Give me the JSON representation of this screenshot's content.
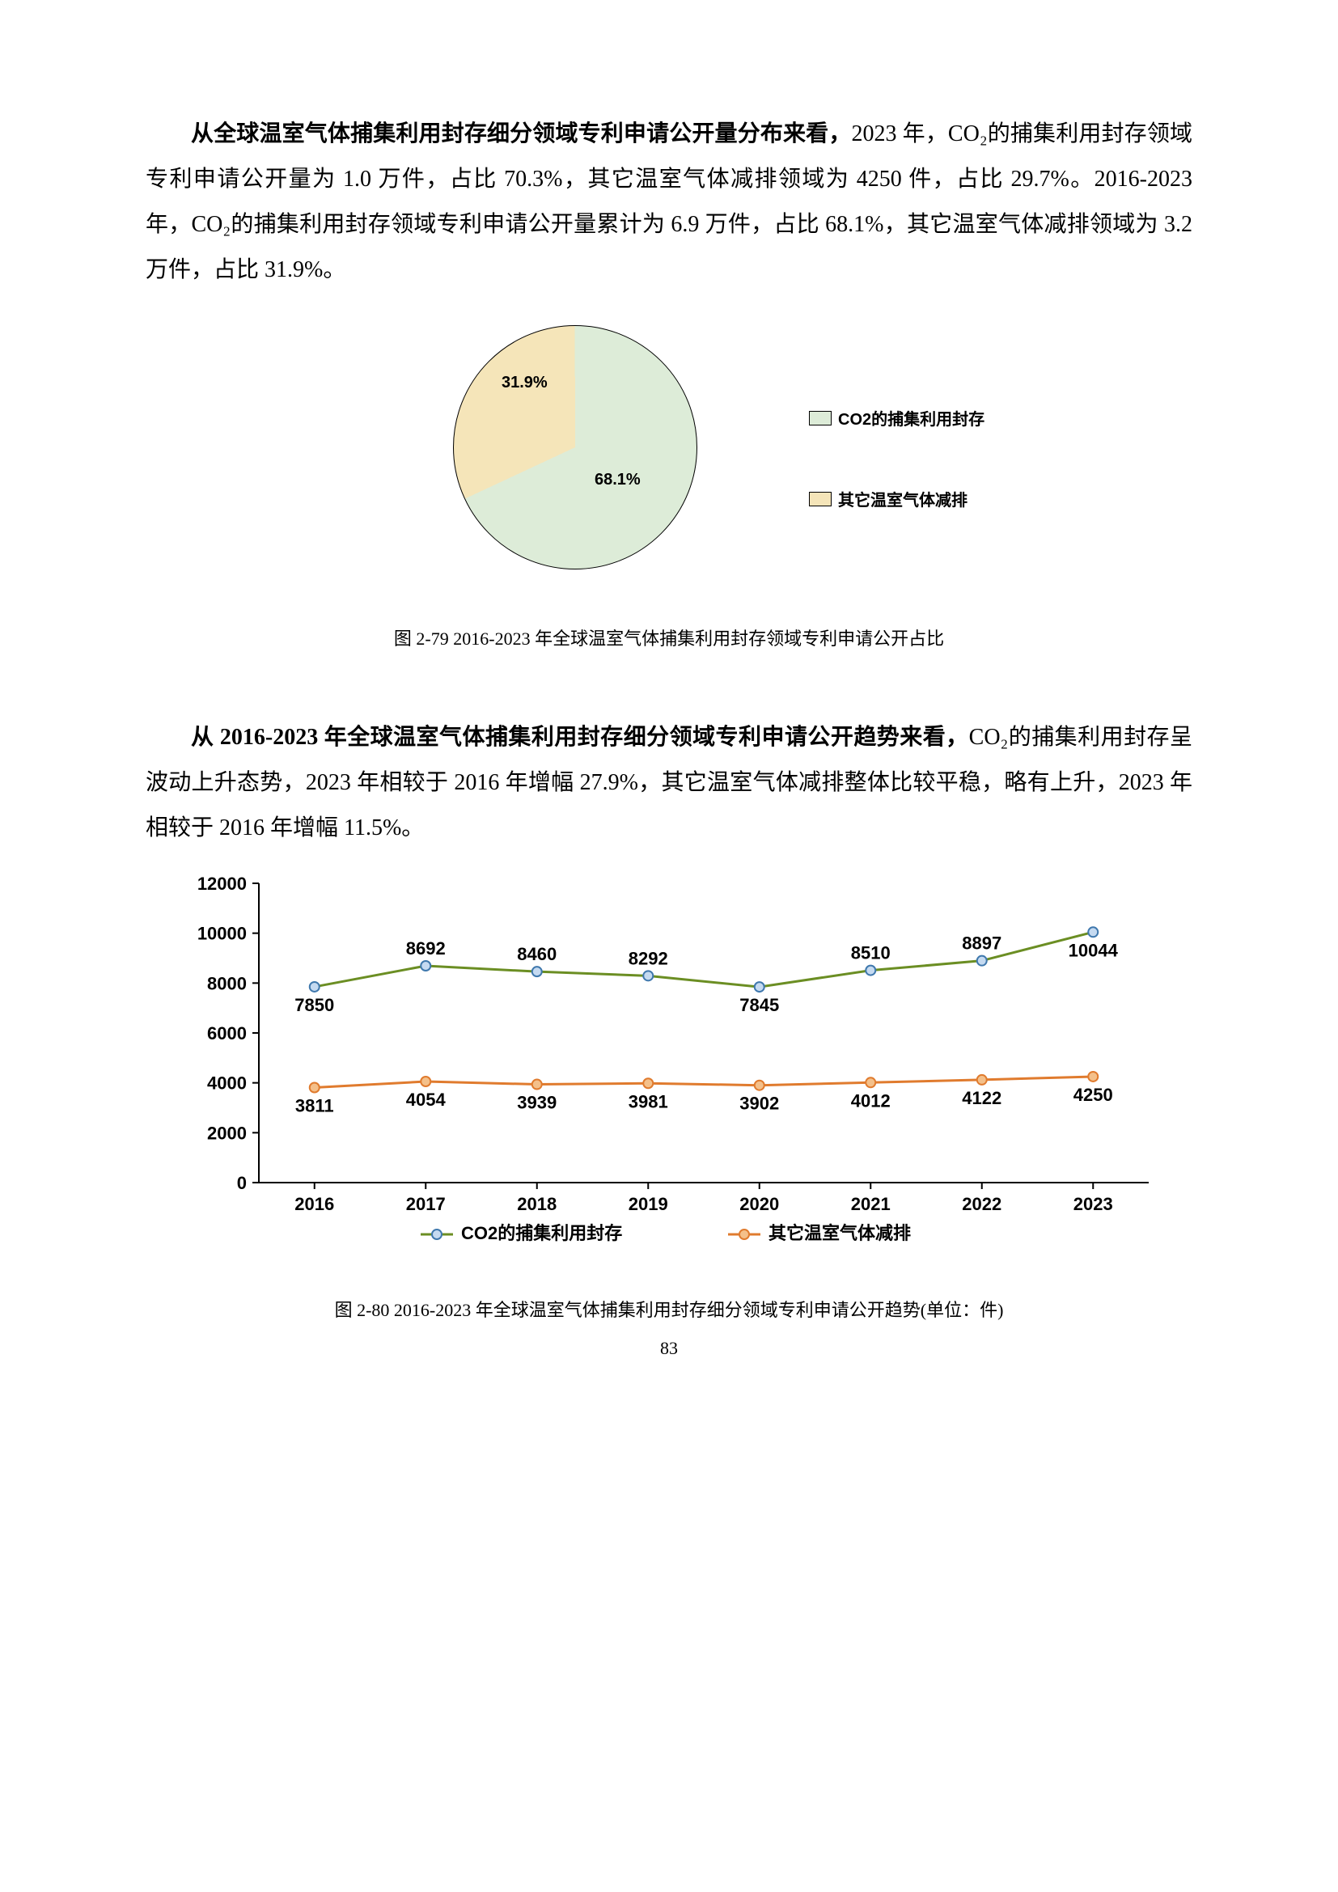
{
  "paragraph1": {
    "lead": "从全球温室气体捕集利用封存细分领域专利申请公开量分布来看，",
    "body": "2023 年，CO₂的捕集利用封存领域专利申请公开量为 1.0 万件，占比 70.3%，其它温室气体减排领域为 4250 件，占比 29.7%。2016-2023 年，CO₂的捕集利用封存领域专利申请公开量累计为 6.9 万件，占比 68.1%，其它温室气体减排领域为 3.2 万件，占比 31.9%。"
  },
  "pie": {
    "type": "pie",
    "slices": [
      {
        "label": "CO2的捕集利用封存",
        "value": 68.1,
        "text": "68.1%",
        "color": "#ddecd8"
      },
      {
        "label": "其它温室气体减排",
        "value": 31.9,
        "text": "31.9%",
        "color": "#f5e5b9"
      }
    ],
    "border_color": "#000000",
    "label_fontsize": 20,
    "legend_marker_prefix": "□",
    "caption": "图 2-79 2016-2023 年全球温室气体捕集利用封存领域专利申请公开占比"
  },
  "paragraph2": {
    "lead": "从 2016-2023 年全球温室气体捕集利用封存细分领域专利申请公开趋势来看，",
    "body": "CO₂的捕集利用封存呈波动上升态势，2023 年相较于 2016 年增幅 27.9%，其它温室气体减排整体比较平稳，略有上升，2023 年相较于 2016 年增幅 11.5%。"
  },
  "line": {
    "type": "line",
    "categories": [
      "2016",
      "2017",
      "2018",
      "2019",
      "2020",
      "2021",
      "2022",
      "2023"
    ],
    "series": [
      {
        "name": "CO2的捕集利用封存",
        "values": [
          7850,
          8692,
          8460,
          8292,
          7845,
          8510,
          8897,
          10044
        ],
        "line_color": "#6b8e23",
        "marker_fill": "#c5daf1",
        "marker_stroke": "#3f78ad",
        "label_pos": [
          "below",
          "above",
          "above",
          "above",
          "below",
          "above",
          "above",
          "below"
        ]
      },
      {
        "name": "其它温室气体减排",
        "values": [
          3811,
          4054,
          3939,
          3981,
          3902,
          4012,
          4122,
          4250
        ],
        "line_color": "#e07b2e",
        "marker_fill": "#f4c08a",
        "marker_stroke": "#e07b2e",
        "label_pos": [
          "below",
          "below",
          "below",
          "below",
          "below",
          "below",
          "below",
          "below"
        ]
      }
    ],
    "ylim": [
      0,
      12000
    ],
    "ytick_step": 2000,
    "yticks": [
      0,
      2000,
      4000,
      6000,
      8000,
      10000,
      12000
    ],
    "axis_color": "#000000",
    "label_fontsize": 22,
    "tick_fontsize": 22,
    "data_label_fontsize": 22,
    "marker_radius": 6,
    "line_width": 3,
    "caption": "图 2-80 2016-2023 年全球温室气体捕集利用封存细分领域专利申请公开趋势(单位：件)"
  },
  "page_number": "83"
}
